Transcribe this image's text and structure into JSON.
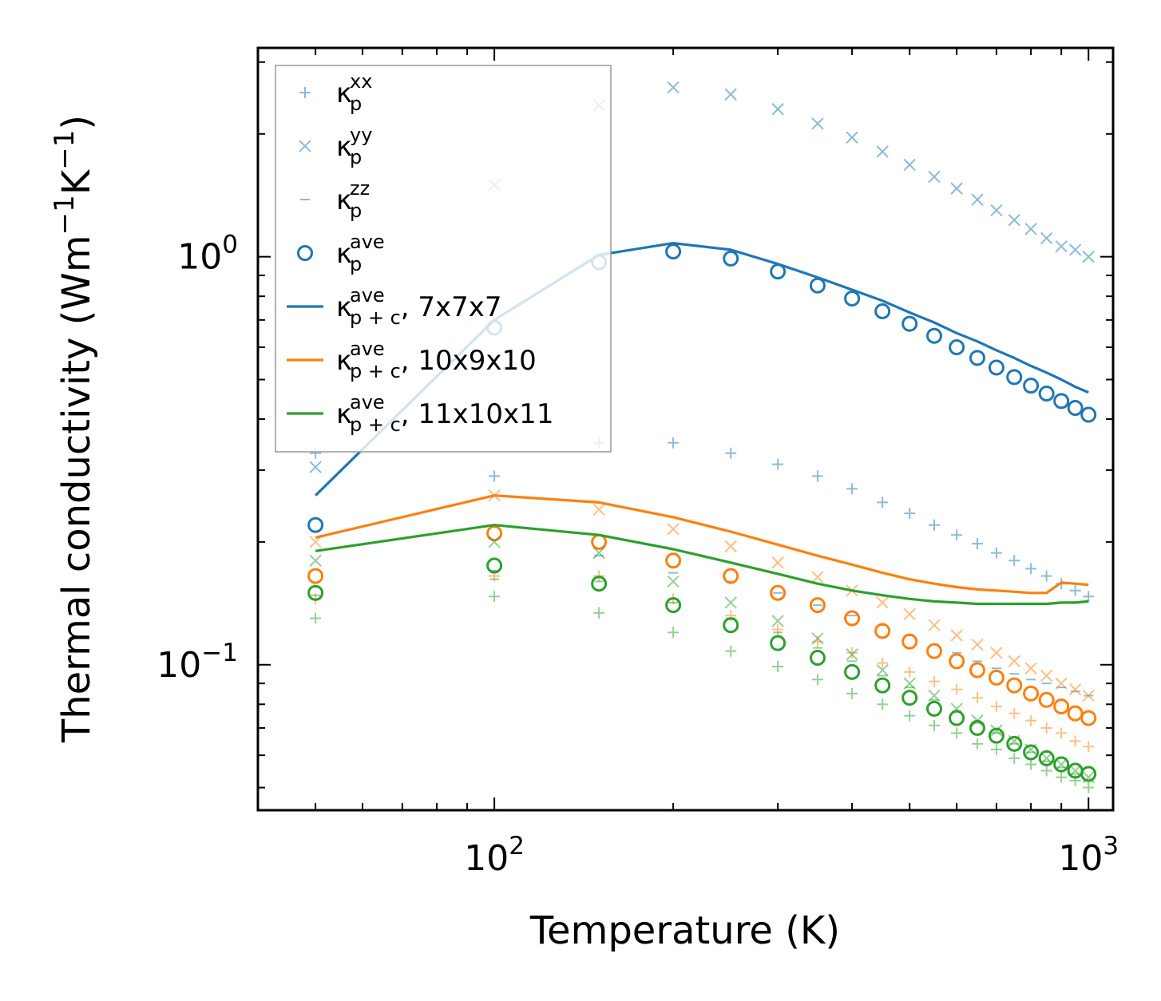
{
  "chart_data": {
    "type": "scatter",
    "title": "",
    "xlabel": "Temperature (K)",
    "ylabel_main": "Thermal conductivity (Wm",
    "ylabel_sup1": "−1",
    "ylabel_mid": "K",
    "ylabel_sup2": "−1",
    "ylabel_end": ")",
    "xscale": "log",
    "yscale": "log",
    "xlim": [
      40,
      1100
    ],
    "ylim": [
      0.044,
      3.25
    ],
    "xticks": [
      {
        "value": 100,
        "base": "10",
        "exp": "2"
      },
      {
        "value": 1000,
        "base": "10",
        "exp": "3"
      }
    ],
    "yticks": [
      {
        "value": 0.1,
        "base": "10",
        "exp": "−1"
      },
      {
        "value": 1,
        "base": "10",
        "exp": "0"
      }
    ],
    "legend_position": "top-left",
    "colors": {
      "blue": "#1f77b4",
      "orange": "#ff7f0e",
      "green": "#2ca02c"
    },
    "x": [
      50,
      100,
      150,
      200,
      250,
      300,
      350,
      400,
      450,
      500,
      550,
      600,
      650,
      700,
      750,
      800,
      850,
      900,
      950,
      1000
    ],
    "legend": [
      {
        "label": "κ",
        "sub": "p",
        "sup": "xx",
        "suffix": "",
        "marker": "plus",
        "color": "#1f77b4",
        "alpha": 0.5
      },
      {
        "label": "κ",
        "sub": "p",
        "sup": "yy",
        "suffix": "",
        "marker": "x",
        "color": "#1f77b4",
        "alpha": 0.5
      },
      {
        "label": "κ",
        "sub": "p",
        "sup": "zz",
        "suffix": "",
        "marker": "dash",
        "color": "#1f77b4",
        "alpha": 0.5
      },
      {
        "label": "κ",
        "sub": "p",
        "sup": "ave",
        "suffix": "",
        "marker": "circle",
        "color": "#1f77b4",
        "alpha": 1
      },
      {
        "label": "κ",
        "sub": "p + c",
        "sup": "ave",
        "suffix": ", 7x7x7",
        "marker": "line",
        "color": "#1f77b4",
        "alpha": 1
      },
      {
        "label": "κ",
        "sub": "p + c",
        "sup": "ave",
        "suffix": ", 10x9x10",
        "marker": "line",
        "color": "#ff7f0e",
        "alpha": 1
      },
      {
        "label": "κ",
        "sub": "p + c",
        "sup": "ave",
        "suffix": ", 11x10x11",
        "marker": "line",
        "color": "#2ca02c",
        "alpha": 1
      }
    ],
    "series": [
      {
        "name": "blue kappa_p xx",
        "color": "#1f77b4",
        "marker": "plus",
        "alpha": 0.5,
        "values": [
          0.33,
          0.29,
          0.35,
          0.35,
          0.33,
          0.31,
          0.29,
          0.27,
          0.25,
          0.235,
          0.22,
          0.208,
          0.198,
          0.188,
          0.18,
          0.172,
          0.165,
          0.158,
          0.152,
          0.147
        ]
      },
      {
        "name": "blue kappa_p yy",
        "color": "#1f77b4",
        "marker": "x",
        "alpha": 0.5,
        "values": [
          0.305,
          1.5,
          2.35,
          2.6,
          2.5,
          2.3,
          2.12,
          1.96,
          1.81,
          1.68,
          1.57,
          1.47,
          1.38,
          1.3,
          1.23,
          1.17,
          1.11,
          1.06,
          1.04,
          1.0
        ]
      },
      {
        "name": "blue kappa_p zz",
        "color": "#1f77b4",
        "marker": "dash",
        "alpha": 0.5,
        "values": [
          0.155,
          0.17,
          0.185,
          0.168,
          0.16,
          0.15,
          0.14,
          0.132,
          0.125,
          0.118,
          0.112,
          0.107,
          0.102,
          0.098,
          0.095,
          0.092,
          0.09,
          0.088,
          0.086,
          0.084
        ]
      },
      {
        "name": "blue kappa_p ave",
        "color": "#1f77b4",
        "marker": "circle",
        "alpha": 1,
        "values": [
          0.22,
          0.67,
          0.97,
          1.03,
          0.99,
          0.92,
          0.85,
          0.79,
          0.735,
          0.685,
          0.64,
          0.6,
          0.565,
          0.535,
          0.507,
          0.483,
          0.462,
          0.443,
          0.426,
          0.41
        ]
      },
      {
        "name": "kappa_p+c ave 7x7x7",
        "color": "#1f77b4",
        "marker": "line",
        "alpha": 1,
        "values": [
          0.26,
          0.7,
          1.01,
          1.08,
          1.04,
          0.96,
          0.89,
          0.83,
          0.78,
          0.73,
          0.69,
          0.65,
          0.62,
          0.59,
          0.565,
          0.54,
          0.52,
          0.5,
          0.48,
          0.465
        ]
      },
      {
        "name": "orange kappa_p xx",
        "color": "#ff7f0e",
        "marker": "plus",
        "alpha": 0.5,
        "values": [
          0.145,
          0.165,
          0.165,
          0.145,
          0.132,
          0.122,
          0.114,
          0.107,
          0.101,
          0.096,
          0.091,
          0.087,
          0.083,
          0.079,
          0.076,
          0.073,
          0.07,
          0.068,
          0.065,
          0.063
        ]
      },
      {
        "name": "orange kappa_p yy",
        "color": "#ff7f0e",
        "marker": "x",
        "alpha": 0.5,
        "values": [
          0.2,
          0.26,
          0.24,
          0.215,
          0.195,
          0.178,
          0.164,
          0.152,
          0.142,
          0.133,
          0.125,
          0.118,
          0.112,
          0.107,
          0.102,
          0.098,
          0.094,
          0.09,
          0.087,
          0.084
        ]
      },
      {
        "name": "orange kappa_p ave",
        "color": "#ff7f0e",
        "marker": "circle",
        "alpha": 1,
        "values": [
          0.165,
          0.21,
          0.2,
          0.18,
          0.165,
          0.15,
          0.14,
          0.13,
          0.121,
          0.114,
          0.108,
          0.102,
          0.097,
          0.093,
          0.089,
          0.085,
          0.082,
          0.079,
          0.076,
          0.074
        ]
      },
      {
        "name": "kappa_p+c ave 10x9x10",
        "color": "#ff7f0e",
        "marker": "line",
        "alpha": 1,
        "values": [
          0.205,
          0.26,
          0.25,
          0.23,
          0.212,
          0.197,
          0.185,
          0.176,
          0.168,
          0.162,
          0.158,
          0.155,
          0.153,
          0.152,
          0.151,
          0.15,
          0.15,
          0.159,
          0.158,
          0.157
        ]
      },
      {
        "name": "green kappa_p xx",
        "color": "#2ca02c",
        "marker": "plus",
        "alpha": 0.5,
        "values": [
          0.13,
          0.147,
          0.134,
          0.12,
          0.108,
          0.099,
          0.092,
          0.085,
          0.08,
          0.075,
          0.071,
          0.068,
          0.064,
          0.062,
          0.059,
          0.057,
          0.055,
          0.053,
          0.052,
          0.05
        ]
      },
      {
        "name": "green kappa_p yy",
        "color": "#2ca02c",
        "marker": "x",
        "alpha": 0.5,
        "values": [
          0.18,
          0.2,
          0.188,
          0.16,
          0.142,
          0.128,
          0.116,
          0.106,
          0.097,
          0.09,
          0.084,
          0.078,
          0.073,
          0.069,
          0.065,
          0.062,
          0.059,
          0.057,
          0.055,
          0.053
        ]
      },
      {
        "name": "green kappa_p zz",
        "color": "#2ca02c",
        "marker": "dash",
        "alpha": 0.5,
        "values": [
          0.148,
          0.162,
          0.16,
          0.142,
          0.13,
          0.12,
          0.11,
          0.102,
          0.094,
          0.088,
          0.082,
          0.077,
          0.072,
          0.068,
          0.064,
          0.061,
          0.058,
          0.056,
          0.054,
          0.052
        ]
      },
      {
        "name": "green kappa_p ave",
        "color": "#2ca02c",
        "marker": "circle",
        "alpha": 1,
        "values": [
          0.15,
          0.175,
          0.158,
          0.14,
          0.125,
          0.113,
          0.104,
          0.096,
          0.089,
          0.083,
          0.078,
          0.074,
          0.07,
          0.067,
          0.064,
          0.061,
          0.059,
          0.057,
          0.055,
          0.054
        ]
      },
      {
        "name": "kappa_p+c ave 11x10x11",
        "color": "#2ca02c",
        "marker": "line",
        "alpha": 1,
        "values": [
          0.19,
          0.22,
          0.208,
          0.192,
          0.178,
          0.167,
          0.158,
          0.152,
          0.148,
          0.145,
          0.143,
          0.142,
          0.141,
          0.141,
          0.141,
          0.141,
          0.141,
          0.142,
          0.142,
          0.143
        ]
      }
    ]
  }
}
